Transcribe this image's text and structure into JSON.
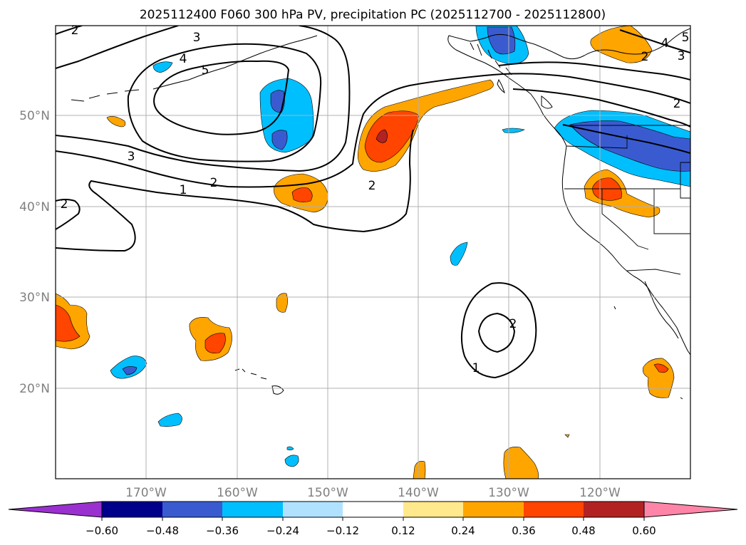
{
  "title": "2025112400 F060 300 hPa PV, precipitation PC (2025112700 - 2025112800)",
  "latitude_labels": [
    "50°N",
    "40°N",
    "30°N",
    "20°N"
  ],
  "longitude_labels": [
    "170°W",
    "160°W",
    "150°W",
    "140°W",
    "130°W",
    "120°W"
  ],
  "contour_labels": [
    "2",
    "3",
    "4",
    "5",
    "3",
    "2",
    "1",
    "2",
    "2",
    "2",
    "4",
    "3",
    "5",
    "2",
    "2",
    "1"
  ],
  "colorbar": {
    "tick_labels": [
      "−0.60",
      "−0.48",
      "−0.36",
      "−0.24",
      "−0.12",
      "0.12",
      "0.24",
      "0.36",
      "0.48",
      "0.60"
    ],
    "colors": [
      "#9b30d0",
      "#00008b",
      "#3a5bd0",
      "#00bfff",
      "#b0e2ff",
      "#ffffff",
      "#ffe98c",
      "#ffa500",
      "#ff4500",
      "#b22222",
      "#ff85a8"
    ]
  },
  "anomaly_colors": {
    "neg_light": "#00bfff",
    "neg_dark": "#3a5bd0",
    "pos_light": "#ffa500",
    "pos_mid": "#ff4500",
    "pos_dark": "#b22222"
  }
}
